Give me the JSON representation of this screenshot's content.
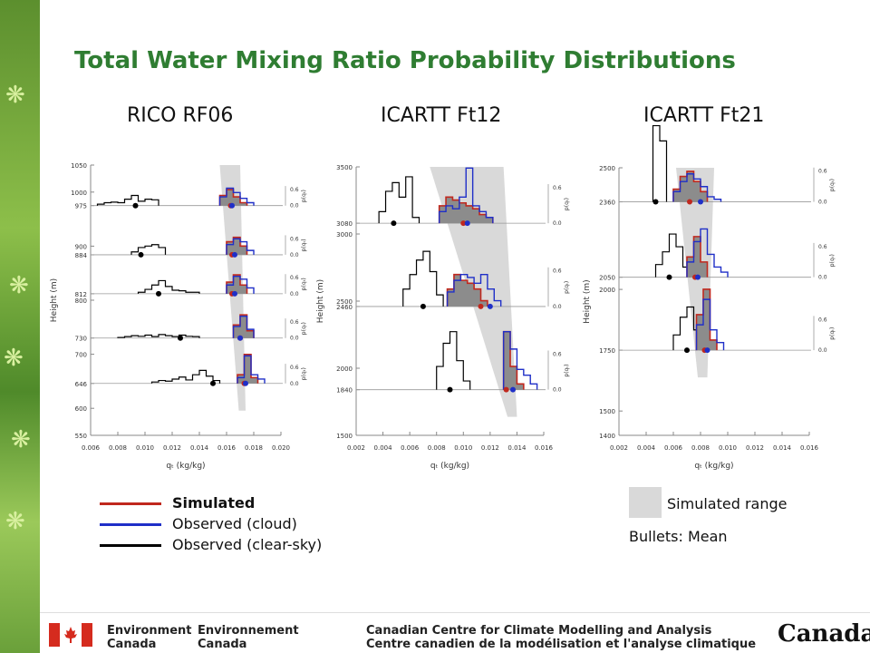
{
  "title": "Total Water Mixing Ratio Probability Distributions",
  "legend": {
    "simulated": "Simulated",
    "observed_cloud": "Observed (cloud)",
    "observed_clear": "Observed (clear-sky)",
    "simulated_range": "Simulated range",
    "bullets": "Bullets: Mean"
  },
  "colors": {
    "simulated": "#c0281e",
    "observed_cloud": "#1f2fc8",
    "observed_clear": "#000000",
    "range": "#d9d9d9",
    "title": "#2f7d32"
  },
  "footer": {
    "org_en_1": "Environment",
    "org_en_2": "Canada",
    "org_fr_1": "Environnement",
    "org_fr_2": "Canada",
    "centre_en": "Canadian Centre for Climate Modelling and Analysis",
    "centre_fr": "Centre canadien de la modélisation et l'analyse climatique",
    "wordmark": "Canada"
  },
  "chart_data": [
    {
      "type": "histogram",
      "title": "RICO RF06",
      "xlabel": "qₜ (kg/kg)",
      "ylabel": "Height (m)",
      "xlim": [
        0.006,
        0.02
      ],
      "xticks": [
        "0.006",
        "0.008",
        "0.010",
        "0.012",
        "0.014",
        "0.016",
        "0.018",
        "0.020"
      ],
      "ylim": [
        550,
        1050
      ],
      "yticks": [
        "1050",
        "1000",
        "975",
        "900",
        "884",
        "812",
        "800",
        "730",
        "700",
        "646",
        "600",
        "550"
      ],
      "pdf_ticks": [
        "0.6",
        "0.0"
      ],
      "pdf_label": "p(qₜ)",
      "range": {
        "top": [
          0.0155,
          0.017
        ],
        "bottom": [
          0.0169,
          0.0174
        ]
      },
      "levels": [
        {
          "height": 975,
          "clear": [
            0.05,
            0.1,
            0.12,
            0.1,
            0.22,
            0.35,
            0.15,
            0.22,
            0.2
          ],
          "clear_x0": 0.0065,
          "cloud": [
            0.3,
            0.6,
            0.45,
            0.25,
            0.1
          ],
          "sim": [
            0.35,
            0.55,
            0.3,
            0.1
          ],
          "cloud_x0": 0.0155,
          "mean_clear": 0.0093,
          "mean_sim": 0.0163,
          "mean_cloud": 0.0164
        },
        {
          "height": 884,
          "clear": [
            0.1,
            0.25,
            0.3,
            0.35,
            0.25
          ],
          "clear_x0": 0.009,
          "cloud": [
            0.35,
            0.55,
            0.45,
            0.15
          ],
          "sim": [
            0.45,
            0.6,
            0.3
          ],
          "cloud_x0": 0.016,
          "mean_clear": 0.0097,
          "mean_sim": 0.0164,
          "mean_cloud": 0.0166
        },
        {
          "height": 812,
          "clear": [
            0.05,
            0.15,
            0.3,
            0.45,
            0.25,
            0.12,
            0.1,
            0.05,
            0.05
          ],
          "clear_x0": 0.0095,
          "cloud": [
            0.3,
            0.6,
            0.5,
            0.2
          ],
          "sim": [
            0.4,
            0.65,
            0.3
          ],
          "cloud_x0": 0.016,
          "mean_clear": 0.011,
          "mean_sim": 0.0164,
          "mean_cloud": 0.0166
        },
        {
          "height": 730,
          "clear": [
            0.02,
            0.05,
            0.08,
            0.06,
            0.1,
            0.05,
            0.12,
            0.08,
            0.05,
            0.1,
            0.06,
            0.05
          ],
          "clear_x0": 0.008,
          "cloud": [
            0.4,
            0.75,
            0.3
          ],
          "sim": [
            0.45,
            0.8,
            0.25
          ],
          "cloud_x0": 0.0165,
          "mean_clear": 0.0126,
          "mean_sim": 0.017,
          "mean_cloud": 0.017
        },
        {
          "height": 646,
          "clear": [
            0.05,
            0.1,
            0.08,
            0.15,
            0.22,
            0.12,
            0.3,
            0.45,
            0.25,
            0.1
          ],
          "clear_x0": 0.0105,
          "cloud": [
            0.2,
            0.95,
            0.3,
            0.15
          ],
          "sim": [
            0.3,
            1.0,
            0.2
          ],
          "cloud_x0": 0.0168,
          "mean_clear": 0.015,
          "mean_sim": 0.0173,
          "mean_cloud": 0.0174
        }
      ]
    },
    {
      "type": "histogram",
      "title": "ICARTT Ft12",
      "xlabel": "qₜ (kg/kg)",
      "ylabel": "Height (m)",
      "xlim": [
        0.002,
        0.016
      ],
      "xticks": [
        "0.002",
        "0.004",
        "0.006",
        "0.008",
        "0.010",
        "0.012",
        "0.014",
        "0.016"
      ],
      "ylim": [
        1500,
        3500
      ],
      "yticks": [
        "3500",
        "3080",
        "3000",
        "2500",
        "2460",
        "2000",
        "1840",
        "1500"
      ],
      "pdf_ticks": [
        "0.6",
        "0.0"
      ],
      "pdf_label": "p(qₜ)",
      "range": {
        "top": [
          0.0075,
          0.013
        ],
        "bottom": [
          0.0133,
          0.014
        ]
      },
      "levels": [
        {
          "height": 3080,
          "clear": [
            0.2,
            0.55,
            0.7,
            0.45,
            0.8,
            0.1
          ],
          "clear_x0": 0.0037,
          "cloud": [
            0.2,
            0.3,
            0.25,
            0.45,
            0.95,
            0.3,
            0.2,
            0.1
          ],
          "sim": [
            0.3,
            0.45,
            0.4,
            0.35,
            0.3,
            0.25,
            0.15,
            0.1
          ],
          "cloud_x0": 0.0082,
          "mean_clear": 0.0048,
          "mean_sim": 0.01,
          "mean_cloud": 0.0103
        },
        {
          "height": 2460,
          "clear": [
            0.3,
            0.55,
            0.8,
            0.95,
            0.6,
            0.2
          ],
          "clear_x0": 0.0055,
          "cloud": [
            0.25,
            0.45,
            0.55,
            0.5,
            0.4,
            0.55,
            0.3,
            0.1
          ],
          "sim": [
            0.3,
            0.55,
            0.45,
            0.4,
            0.3,
            0.1
          ],
          "cloud_x0": 0.0088,
          "mean_clear": 0.007,
          "mean_sim": 0.0113,
          "mean_cloud": 0.012
        },
        {
          "height": 1840,
          "clear": [
            0.4,
            0.8,
            1.0,
            0.5,
            0.15
          ],
          "clear_x0": 0.008,
          "cloud": [
            1.0,
            0.7,
            0.35,
            0.25,
            0.1
          ],
          "sim": [
            1.0,
            0.4,
            0.1
          ],
          "cloud_x0": 0.013,
          "mean_clear": 0.009,
          "mean_sim": 0.0132,
          "mean_cloud": 0.0137
        }
      ]
    },
    {
      "type": "histogram",
      "title": "ICARTT Ft21",
      "xlabel": "qₜ (kg/kg)",
      "ylabel": "Height (m)",
      "xlim": [
        0.002,
        0.016
      ],
      "xticks": [
        "0.002",
        "0.004",
        "0.006",
        "0.008",
        "0.010",
        "0.012",
        "0.014",
        "0.016"
      ],
      "ylim": [
        1400,
        2500
      ],
      "yticks": [
        "2500",
        "2360",
        "2050",
        "2000",
        "1750",
        "1500",
        "1400"
      ],
      "pdf_ticks": [
        "0.6",
        "0.0"
      ],
      "pdf_label": "p(qₜ)",
      "range": {
        "top": [
          0.0062,
          0.009
        ],
        "bottom": [
          0.0078,
          0.0085
        ]
      },
      "levels": [
        {
          "height": 2360,
          "clear": [
            1.5,
            1.2
          ],
          "clear_x0": 0.0045,
          "cloud": [
            0.2,
            0.4,
            0.55,
            0.45,
            0.3,
            0.1,
            0.05
          ],
          "sim": [
            0.25,
            0.5,
            0.6,
            0.4,
            0.2
          ],
          "cloud_x0": 0.006,
          "mean_clear": 0.0047,
          "mean_sim": 0.0072,
          "mean_cloud": 0.008
        },
        {
          "height": 2050,
          "clear": [
            0.25,
            0.5,
            0.85,
            0.6,
            0.2
          ],
          "clear_x0": 0.0047,
          "cloud": [
            0.3,
            0.7,
            0.95,
            0.45,
            0.2,
            0.1
          ],
          "sim": [
            0.4,
            0.8,
            0.3
          ],
          "cloud_x0": 0.007,
          "mean_clear": 0.0057,
          "mean_sim": 0.0076,
          "mean_cloud": 0.0078
        },
        {
          "height": 1750,
          "clear": [
            0.3,
            0.65,
            0.85,
            0.4
          ],
          "clear_x0": 0.006,
          "cloud": [
            0.5,
            1.0,
            0.4,
            0.15
          ],
          "sim": [
            0.7,
            1.2,
            0.2
          ],
          "cloud_x0": 0.0077,
          "mean_clear": 0.007,
          "mean_sim": 0.0083,
          "mean_cloud": 0.0085
        }
      ]
    }
  ]
}
